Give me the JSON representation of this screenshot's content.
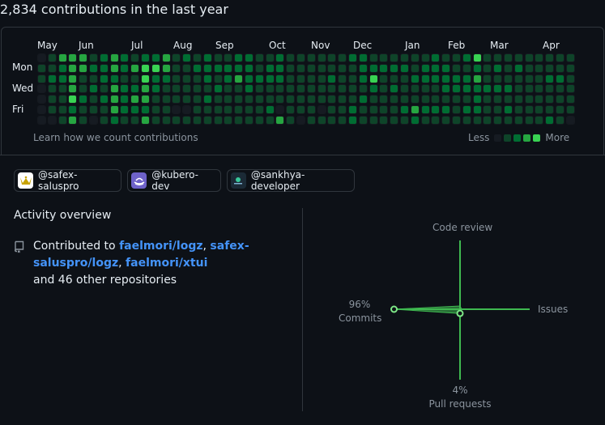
{
  "headline": "2,834 contributions in the last year",
  "calendar": {
    "months": [
      "May",
      "Jun",
      "Jul",
      "Aug",
      "Sep",
      "Oct",
      "Nov",
      "Dec",
      "Jan",
      "Feb",
      "Mar",
      "Apr"
    ],
    "days": [
      "Mon",
      "Wed",
      "Fri"
    ],
    "learn_link": "Learn how we count contributions",
    "legend_less": "Less",
    "legend_more": "More",
    "colors": [
      "#161b22",
      "#0e4429",
      "#006d32",
      "#26a641",
      "#39d353"
    ],
    "levels": [
      [
        0,
        1,
        1,
        0,
        0,
        0,
        0
      ],
      [
        1,
        1,
        2,
        1,
        1,
        1,
        0
      ],
      [
        3,
        2,
        2,
        1,
        1,
        1,
        1
      ],
      [
        3,
        3,
        3,
        3,
        4,
        2,
        3
      ],
      [
        3,
        3,
        1,
        1,
        2,
        1,
        1
      ],
      [
        1,
        2,
        1,
        2,
        1,
        1,
        0
      ],
      [
        2,
        2,
        2,
        1,
        2,
        1,
        1
      ],
      [
        3,
        3,
        2,
        3,
        3,
        3,
        2
      ],
      [
        2,
        2,
        1,
        2,
        2,
        2,
        1
      ],
      [
        1,
        3,
        1,
        2,
        3,
        2,
        1
      ],
      [
        2,
        4,
        4,
        3,
        3,
        2,
        3
      ],
      [
        2,
        4,
        2,
        2,
        1,
        1,
        1
      ],
      [
        3,
        3,
        2,
        1,
        1,
        1,
        1
      ],
      [
        1,
        1,
        1,
        1,
        1,
        0,
        1
      ],
      [
        2,
        1,
        1,
        1,
        1,
        0,
        1
      ],
      [
        1,
        2,
        1,
        1,
        1,
        1,
        1
      ],
      [
        2,
        2,
        2,
        1,
        2,
        1,
        1
      ],
      [
        1,
        2,
        1,
        2,
        1,
        1,
        1
      ],
      [
        1,
        2,
        2,
        1,
        1,
        1,
        1
      ],
      [
        2,
        2,
        3,
        1,
        1,
        1,
        1
      ],
      [
        2,
        2,
        2,
        2,
        1,
        1,
        1
      ],
      [
        1,
        1,
        2,
        1,
        1,
        1,
        1
      ],
      [
        1,
        2,
        2,
        1,
        1,
        2,
        1
      ],
      [
        2,
        2,
        2,
        1,
        1,
        0,
        3
      ],
      [
        1,
        1,
        1,
        1,
        1,
        1,
        1
      ],
      [
        1,
        1,
        1,
        1,
        1,
        1,
        0
      ],
      [
        1,
        1,
        1,
        1,
        1,
        1,
        1
      ],
      [
        1,
        1,
        1,
        1,
        1,
        0,
        1
      ],
      [
        1,
        1,
        2,
        1,
        1,
        1,
        1
      ],
      [
        1,
        1,
        1,
        1,
        1,
        1,
        1
      ],
      [
        2,
        1,
        1,
        1,
        1,
        2,
        2
      ],
      [
        2,
        2,
        2,
        1,
        2,
        1,
        1
      ],
      [
        1,
        2,
        4,
        2,
        1,
        1,
        1
      ],
      [
        1,
        2,
        1,
        1,
        1,
        1,
        1
      ],
      [
        1,
        2,
        1,
        2,
        1,
        1,
        1
      ],
      [
        1,
        2,
        1,
        1,
        1,
        2,
        1
      ],
      [
        1,
        1,
        2,
        1,
        1,
        3,
        2
      ],
      [
        1,
        2,
        2,
        1,
        1,
        2,
        1
      ],
      [
        2,
        2,
        2,
        1,
        1,
        2,
        1
      ],
      [
        1,
        2,
        2,
        2,
        1,
        2,
        1
      ],
      [
        1,
        1,
        2,
        2,
        1,
        1,
        1
      ],
      [
        2,
        1,
        2,
        2,
        1,
        2,
        1
      ],
      [
        4,
        2,
        3,
        2,
        2,
        2,
        1
      ],
      [
        1,
        1,
        1,
        2,
        1,
        1,
        1
      ],
      [
        1,
        2,
        1,
        2,
        1,
        1,
        1
      ],
      [
        1,
        1,
        1,
        2,
        1,
        2,
        1
      ],
      [
        1,
        2,
        1,
        1,
        1,
        1,
        1
      ],
      [
        1,
        1,
        1,
        1,
        1,
        1,
        1
      ],
      [
        1,
        1,
        1,
        1,
        1,
        1,
        1
      ],
      [
        1,
        1,
        2,
        1,
        1,
        1,
        2
      ],
      [
        1,
        1,
        2,
        1,
        1,
        1,
        1
      ],
      [
        1,
        1,
        1,
        1,
        1,
        1,
        0
      ]
    ]
  },
  "orgs": [
    {
      "handle": "@safex-saluspro",
      "avatar_bg": "#ffffff",
      "avatar_fg": "#c8a200",
      "icon": "crown-icon"
    },
    {
      "handle": "@kubero-dev",
      "avatar_bg": "#6e62c9",
      "avatar_fg": "#ffffff",
      "icon": "wave-hat-icon"
    },
    {
      "handle": "@sankhya-developer",
      "avatar_bg": "#1b2a36",
      "avatar_fg": "#38c79a",
      "icon": "sankhya-icon"
    }
  ],
  "activity": {
    "title": "Activity overview",
    "contributed_prefix": "Contributed to",
    "repos": [
      "faelmori/logz",
      "safex-saluspro/logz",
      "faelmori/xtui"
    ],
    "sep": ", ",
    "other": "and 46 other repositories"
  },
  "overview": {
    "code_review": "Code review",
    "issues": "Issues",
    "commits_pct": "96%",
    "commits_label": "Commits",
    "pr_pct": "4%",
    "pr_label": "Pull requests",
    "commits_value": 96,
    "pull_requests_value": 4,
    "code_review_value": 0,
    "issues_value": 0,
    "axis_color": "#3fb950"
  }
}
